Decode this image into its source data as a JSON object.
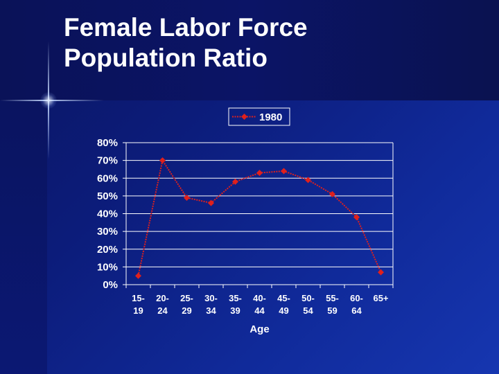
{
  "slide": {
    "title": "Female Labor Force\nPopulation Ratio"
  },
  "colors": {
    "series": "#e0201c",
    "background": "#0c1c7a",
    "text": "#ffffff",
    "grid": "#ffffff"
  },
  "chart_data": {
    "type": "line",
    "title": "",
    "xlabel": "Age",
    "ylabel": "",
    "categories": [
      [
        "15-",
        "19"
      ],
      [
        "20-",
        "24"
      ],
      [
        "25-",
        "29"
      ],
      [
        "30-",
        "34"
      ],
      [
        "35-",
        "39"
      ],
      [
        "40-",
        "44"
      ],
      [
        "45-",
        "49"
      ],
      [
        "50-",
        "54"
      ],
      [
        "55-",
        "59"
      ],
      [
        "60-",
        "64"
      ],
      [
        "65+"
      ]
    ],
    "ylim": [
      0,
      0.8
    ],
    "yticks": [
      "0%",
      "10%",
      "20%",
      "30%",
      "40%",
      "50%",
      "60%",
      "70%",
      "80%"
    ],
    "grid": "horizontal",
    "legend": {
      "placement": "top-center",
      "entries": [
        "1980"
      ]
    },
    "series": [
      {
        "name": "1980",
        "values": [
          0.05,
          0.7,
          0.49,
          0.46,
          0.58,
          0.63,
          0.64,
          0.59,
          0.51,
          0.38,
          0.07
        ]
      }
    ]
  }
}
